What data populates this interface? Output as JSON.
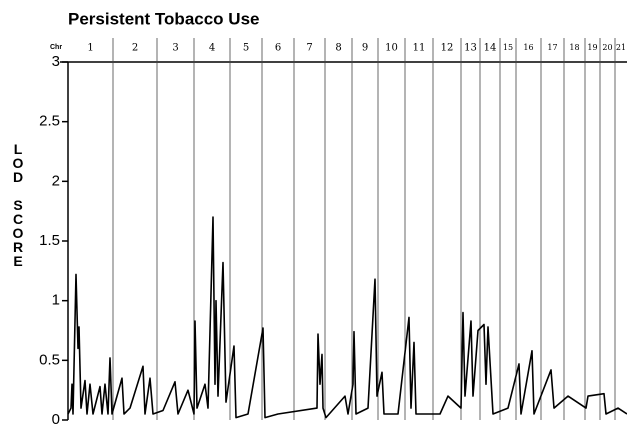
{
  "chart_data": {
    "type": "line",
    "title": "Persistent Tobacco Use",
    "ylabel": "LOD SCORE",
    "chr_label": "Chr",
    "chromosomes": [
      "1",
      "2",
      "3",
      "4",
      "5",
      "6",
      "7",
      "8",
      "9",
      "10",
      "11",
      "12",
      "13",
      "14",
      "15",
      "16",
      "17",
      "18",
      "19",
      "20",
      "21"
    ],
    "boundaries": [
      45,
      89,
      126,
      162,
      194,
      226,
      257,
      284,
      310,
      337,
      365,
      393,
      412,
      432,
      448,
      473,
      496,
      517,
      532,
      547
    ],
    "xlim": [
      0,
      559
    ],
    "ylim": [
      0,
      3
    ],
    "yticks": [
      0,
      0.5,
      1,
      1.5,
      2,
      2.5,
      3
    ],
    "color": "#000000",
    "x": [
      0,
      3,
      4,
      5,
      8,
      10,
      11,
      13,
      17,
      19,
      22,
      25,
      32,
      34,
      37,
      40,
      42,
      44,
      54,
      56,
      62,
      75,
      77,
      82,
      85,
      95,
      107,
      110,
      120,
      126,
      127,
      129,
      137,
      140,
      145,
      147,
      148,
      150,
      155,
      158,
      166,
      168,
      180,
      195,
      197,
      210,
      249,
      250,
      252,
      254,
      255,
      258,
      277,
      280,
      285,
      286,
      288,
      300,
      307,
      309,
      314,
      316,
      330,
      341,
      343,
      346,
      348,
      372,
      380,
      393,
      395,
      397,
      403,
      405,
      410,
      416,
      418,
      420,
      425,
      440,
      451,
      453,
      464,
      466,
      483,
      486,
      500,
      518,
      520,
      536,
      538,
      550,
      559
    ],
    "values": [
      0.05,
      0.1,
      0.3,
      0.05,
      1.22,
      0.6,
      0.78,
      0.1,
      0.33,
      0.05,
      0.3,
      0.05,
      0.28,
      0.05,
      0.3,
      0.05,
      0.52,
      0.05,
      0.35,
      0.05,
      0.1,
      0.45,
      0.05,
      0.35,
      0.05,
      0.08,
      0.32,
      0.05,
      0.25,
      0.05,
      0.83,
      0.1,
      0.3,
      0.1,
      1.7,
      0.3,
      1.0,
      0.2,
      1.32,
      0.15,
      0.62,
      0.02,
      0.05,
      0.77,
      0.02,
      0.05,
      0.1,
      0.72,
      0.3,
      0.55,
      0.1,
      0.02,
      0.2,
      0.05,
      0.3,
      0.74,
      0.05,
      0.1,
      1.18,
      0.2,
      0.4,
      0.05,
      0.05,
      0.86,
      0.1,
      0.65,
      0.05,
      0.05,
      0.2,
      0.1,
      0.9,
      0.2,
      0.83,
      0.2,
      0.75,
      0.8,
      0.3,
      0.78,
      0.05,
      0.1,
      0.47,
      0.05,
      0.58,
      0.05,
      0.42,
      0.1,
      0.2,
      0.1,
      0.2,
      0.22,
      0.05,
      0.1,
      0.05
    ]
  }
}
